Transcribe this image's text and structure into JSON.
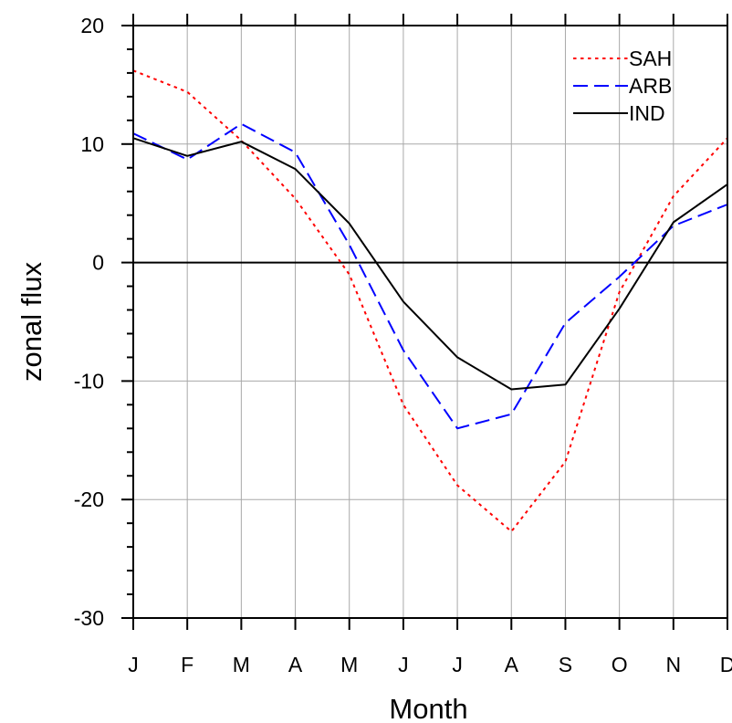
{
  "chart_data": {
    "type": "line",
    "title": "",
    "xlabel": "Month",
    "ylabel": "zonal flux",
    "categories": [
      "J",
      "F",
      "M",
      "A",
      "M",
      "J",
      "J",
      "A",
      "S",
      "O",
      "N",
      "D"
    ],
    "ylim": [
      -30,
      20
    ],
    "yticks": [
      -30,
      -20,
      -10,
      0,
      10,
      20
    ],
    "grid": true,
    "zero_line": true,
    "legend_position": "top-right",
    "series": [
      {
        "name": "SAH",
        "color": "#ff0000",
        "dash": "dotted",
        "values": [
          16.2,
          14.4,
          10.3,
          5.4,
          -1.0,
          -12.0,
          -18.8,
          -22.7,
          -16.8,
          -2.5,
          5.6,
          10.5
        ]
      },
      {
        "name": "ARB",
        "color": "#0000ff",
        "dash": "dashed",
        "values": [
          10.9,
          8.7,
          11.7,
          9.3,
          1.5,
          -7.4,
          -14.0,
          -12.8,
          -5.1,
          -1.2,
          3.1,
          4.9
        ]
      },
      {
        "name": "IND",
        "color": "#000000",
        "dash": "solid",
        "values": [
          10.5,
          9.0,
          10.2,
          7.9,
          3.3,
          -3.3,
          -8.0,
          -10.7,
          -10.3,
          -3.9,
          3.4,
          6.6
        ]
      }
    ]
  }
}
